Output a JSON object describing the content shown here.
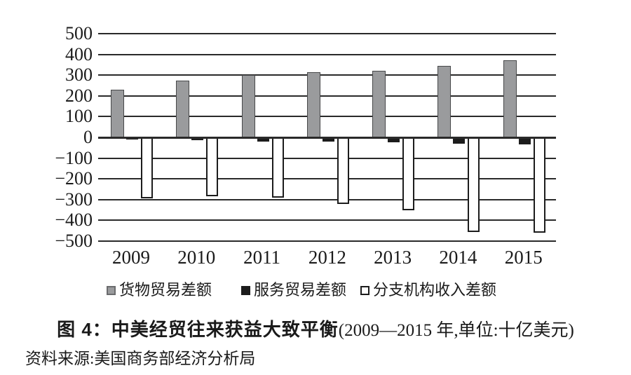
{
  "figure": {
    "caption_bold": "图 4：中美经贸往来获益大致平衡",
    "caption_paren": "(2009—2015 年,单位:十亿美元)",
    "source": "资料来源:美国商务部经济分析局"
  },
  "colors": {
    "goods_bar": "#9a9b9d",
    "goods_border": "#47484a",
    "services_bar": "#1c1c1c",
    "branch_bar": "#ffffff",
    "branch_border": "#1c1c1c",
    "gridline": "#2a2a2a",
    "text": "#1a1a1a",
    "background": "#ffffff"
  },
  "chart_data": {
    "type": "bar",
    "title": "中美经贸往来获益大致平衡",
    "period": "2009—2015 年",
    "unit": "十亿美元",
    "source": "美国商务部经济分析局",
    "grid": true,
    "legend_position": "bottom",
    "xlabel": "",
    "ylabel": "",
    "ylim": [
      -500,
      500
    ],
    "categories": [
      "2009",
      "2010",
      "2011",
      "2012",
      "2013",
      "2014",
      "2015"
    ],
    "series": [
      {
        "key": "goods-trade",
        "name": "货物贸易差额",
        "color": "#9a9b9d",
        "border": "#47484a",
        "marker_border": "#6b6c6e",
        "values": [
          230,
          275,
          300,
          315,
          320,
          345,
          370
        ]
      },
      {
        "key": "services-trade",
        "name": "服务贸易差额",
        "color": "#1c1c1c",
        "border": "#1c1c1c",
        "marker_border": "#1c1c1c",
        "values": [
          -10,
          -15,
          -20,
          -20,
          -25,
          -30,
          -35
        ]
      },
      {
        "key": "branch-income",
        "name": "分支机构收入差额",
        "color": "#ffffff",
        "border": "#1c1c1c",
        "marker_border": "#1c1c1c",
        "values": [
          -295,
          -285,
          -290,
          -320,
          -350,
          -455,
          -460
        ]
      }
    ],
    "yticks": [
      {
        "value": 500,
        "label": "500"
      },
      {
        "value": 400,
        "label": "400"
      },
      {
        "value": 300,
        "label": "300"
      },
      {
        "value": 200,
        "label": "200"
      },
      {
        "value": 100,
        "label": "100"
      },
      {
        "value": 0,
        "label": "0"
      },
      {
        "value": -100,
        "label": "−100"
      },
      {
        "value": -200,
        "label": "−200"
      },
      {
        "value": -300,
        "label": "−300"
      },
      {
        "value": -400,
        "label": "−400"
      },
      {
        "value": -500,
        "label": "−500"
      }
    ]
  }
}
